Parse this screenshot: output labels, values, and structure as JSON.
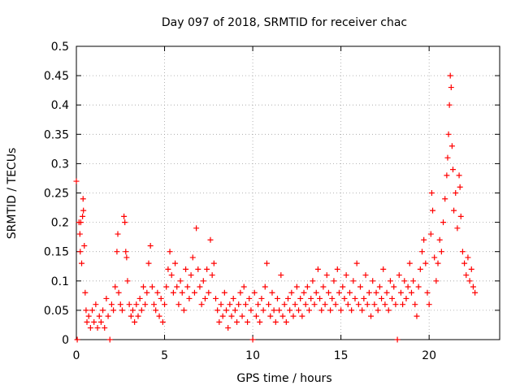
{
  "chart_data": {
    "type": "scatter",
    "title": "Day 097 of 2018, SRMTID for receiver chac",
    "xlabel": "GPS time / hours",
    "ylabel": "SRMTID / TECUs",
    "xlim": [
      0,
      24
    ],
    "ylim": [
      0,
      0.5
    ],
    "x_ticks": [
      0,
      5,
      10,
      15,
      20
    ],
    "x_tick_labels": [
      "0",
      "5",
      "10",
      "15",
      "20"
    ],
    "y_ticks": [
      0,
      0.05,
      0.1,
      0.15,
      0.2,
      0.25,
      0.3,
      0.35,
      0.4,
      0.45,
      0.5
    ],
    "y_tick_labels": [
      "0",
      "0.05",
      "0.1",
      "0.15",
      "0.2",
      "0.25",
      "0.3",
      "0.35",
      "0.4",
      "0.45",
      "0.5"
    ],
    "grid": true,
    "marker": "+",
    "color": "#ff0000",
    "series": [
      {
        "name": "SRMTID",
        "points": [
          [
            0.0,
            0.27
          ],
          [
            0.05,
            0.0
          ],
          [
            0.15,
            0.2
          ],
          [
            0.2,
            0.18
          ],
          [
            0.22,
            0.15
          ],
          [
            0.25,
            0.2
          ],
          [
            0.3,
            0.13
          ],
          [
            0.35,
            0.21
          ],
          [
            0.38,
            0.24
          ],
          [
            0.4,
            0.22
          ],
          [
            0.45,
            0.16
          ],
          [
            0.5,
            0.08
          ],
          [
            0.55,
            0.05
          ],
          [
            0.6,
            0.03
          ],
          [
            0.7,
            0.04
          ],
          [
            0.8,
            0.02
          ],
          [
            0.9,
            0.05
          ],
          [
            1.0,
            0.03
          ],
          [
            1.1,
            0.06
          ],
          [
            1.2,
            0.02
          ],
          [
            1.3,
            0.04
          ],
          [
            1.4,
            0.03
          ],
          [
            1.5,
            0.05
          ],
          [
            1.6,
            0.02
          ],
          [
            1.7,
            0.07
          ],
          [
            1.8,
            0.04
          ],
          [
            1.9,
            0.0
          ],
          [
            2.0,
            0.06
          ],
          [
            2.1,
            0.05
          ],
          [
            2.2,
            0.09
          ],
          [
            2.3,
            0.15
          ],
          [
            2.35,
            0.18
          ],
          [
            2.4,
            0.08
          ],
          [
            2.5,
            0.06
          ],
          [
            2.6,
            0.05
          ],
          [
            2.7,
            0.21
          ],
          [
            2.75,
            0.2
          ],
          [
            2.8,
            0.15
          ],
          [
            2.85,
            0.14
          ],
          [
            2.9,
            0.1
          ],
          [
            3.0,
            0.06
          ],
          [
            3.1,
            0.04
          ],
          [
            3.2,
            0.05
          ],
          [
            3.3,
            0.03
          ],
          [
            3.4,
            0.06
          ],
          [
            3.5,
            0.04
          ],
          [
            3.6,
            0.07
          ],
          [
            3.7,
            0.05
          ],
          [
            3.8,
            0.09
          ],
          [
            3.9,
            0.06
          ],
          [
            4.0,
            0.08
          ],
          [
            4.1,
            0.13
          ],
          [
            4.2,
            0.16
          ],
          [
            4.3,
            0.09
          ],
          [
            4.4,
            0.06
          ],
          [
            4.5,
            0.05
          ],
          [
            4.6,
            0.08
          ],
          [
            4.7,
            0.04
          ],
          [
            4.8,
            0.07
          ],
          [
            4.9,
            0.03
          ],
          [
            5.0,
            0.06
          ],
          [
            5.1,
            0.09
          ],
          [
            5.2,
            0.12
          ],
          [
            5.3,
            0.15
          ],
          [
            5.4,
            0.11
          ],
          [
            5.5,
            0.08
          ],
          [
            5.6,
            0.13
          ],
          [
            5.7,
            0.09
          ],
          [
            5.8,
            0.06
          ],
          [
            5.9,
            0.1
          ],
          [
            6.0,
            0.08
          ],
          [
            6.1,
            0.05
          ],
          [
            6.2,
            0.12
          ],
          [
            6.3,
            0.09
          ],
          [
            6.4,
            0.07
          ],
          [
            6.5,
            0.11
          ],
          [
            6.6,
            0.14
          ],
          [
            6.7,
            0.08
          ],
          [
            6.8,
            0.19
          ],
          [
            6.9,
            0.12
          ],
          [
            7.0,
            0.09
          ],
          [
            7.1,
            0.06
          ],
          [
            7.2,
            0.1
          ],
          [
            7.3,
            0.07
          ],
          [
            7.4,
            0.12
          ],
          [
            7.5,
            0.08
          ],
          [
            7.6,
            0.17
          ],
          [
            7.7,
            0.11
          ],
          [
            7.8,
            0.13
          ],
          [
            7.9,
            0.07
          ],
          [
            8.0,
            0.05
          ],
          [
            8.1,
            0.03
          ],
          [
            8.2,
            0.06
          ],
          [
            8.3,
            0.04
          ],
          [
            8.4,
            0.08
          ],
          [
            8.5,
            0.05
          ],
          [
            8.6,
            0.02
          ],
          [
            8.7,
            0.06
          ],
          [
            8.8,
            0.04
          ],
          [
            8.9,
            0.07
          ],
          [
            9.0,
            0.05
          ],
          [
            9.1,
            0.03
          ],
          [
            9.2,
            0.06
          ],
          [
            9.3,
            0.08
          ],
          [
            9.4,
            0.04
          ],
          [
            9.5,
            0.09
          ],
          [
            9.6,
            0.06
          ],
          [
            9.7,
            0.03
          ],
          [
            9.8,
            0.07
          ],
          [
            9.9,
            0.05
          ],
          [
            10.0,
            0.0
          ],
          [
            10.1,
            0.08
          ],
          [
            10.2,
            0.04
          ],
          [
            10.3,
            0.06
          ],
          [
            10.4,
            0.03
          ],
          [
            10.5,
            0.07
          ],
          [
            10.6,
            0.05
          ],
          [
            10.7,
            0.09
          ],
          [
            10.8,
            0.13
          ],
          [
            10.9,
            0.06
          ],
          [
            11.0,
            0.04
          ],
          [
            11.1,
            0.08
          ],
          [
            11.2,
            0.05
          ],
          [
            11.3,
            0.03
          ],
          [
            11.4,
            0.07
          ],
          [
            11.5,
            0.05
          ],
          [
            11.6,
            0.11
          ],
          [
            11.7,
            0.04
          ],
          [
            11.8,
            0.06
          ],
          [
            11.9,
            0.03
          ],
          [
            12.0,
            0.07
          ],
          [
            12.1,
            0.05
          ],
          [
            12.2,
            0.08
          ],
          [
            12.3,
            0.04
          ],
          [
            12.4,
            0.06
          ],
          [
            12.5,
            0.09
          ],
          [
            12.6,
            0.05
          ],
          [
            12.7,
            0.07
          ],
          [
            12.8,
            0.04
          ],
          [
            12.9,
            0.08
          ],
          [
            13.0,
            0.06
          ],
          [
            13.1,
            0.09
          ],
          [
            13.2,
            0.05
          ],
          [
            13.3,
            0.07
          ],
          [
            13.4,
            0.1
          ],
          [
            13.5,
            0.06
          ],
          [
            13.6,
            0.08
          ],
          [
            13.7,
            0.12
          ],
          [
            13.8,
            0.07
          ],
          [
            13.9,
            0.05
          ],
          [
            14.0,
            0.09
          ],
          [
            14.1,
            0.06
          ],
          [
            14.2,
            0.11
          ],
          [
            14.3,
            0.08
          ],
          [
            14.4,
            0.05
          ],
          [
            14.5,
            0.07
          ],
          [
            14.6,
            0.1
          ],
          [
            14.7,
            0.06
          ],
          [
            14.8,
            0.12
          ],
          [
            14.9,
            0.08
          ],
          [
            15.0,
            0.05
          ],
          [
            15.1,
            0.09
          ],
          [
            15.2,
            0.07
          ],
          [
            15.3,
            0.11
          ],
          [
            15.4,
            0.06
          ],
          [
            15.5,
            0.08
          ],
          [
            15.6,
            0.05
          ],
          [
            15.7,
            0.1
          ],
          [
            15.8,
            0.07
          ],
          [
            15.9,
            0.13
          ],
          [
            16.0,
            0.06
          ],
          [
            16.1,
            0.09
          ],
          [
            16.2,
            0.05
          ],
          [
            16.3,
            0.07
          ],
          [
            16.4,
            0.11
          ],
          [
            16.5,
            0.06
          ],
          [
            16.6,
            0.08
          ],
          [
            16.7,
            0.04
          ],
          [
            16.8,
            0.1
          ],
          [
            16.9,
            0.06
          ],
          [
            17.0,
            0.08
          ],
          [
            17.1,
            0.05
          ],
          [
            17.2,
            0.09
          ],
          [
            17.3,
            0.07
          ],
          [
            17.4,
            0.12
          ],
          [
            17.5,
            0.06
          ],
          [
            17.6,
            0.08
          ],
          [
            17.7,
            0.05
          ],
          [
            17.8,
            0.1
          ],
          [
            17.9,
            0.07
          ],
          [
            18.0,
            0.09
          ],
          [
            18.1,
            0.06
          ],
          [
            18.2,
            0.0
          ],
          [
            18.3,
            0.11
          ],
          [
            18.4,
            0.08
          ],
          [
            18.5,
            0.06
          ],
          [
            18.6,
            0.1
          ],
          [
            18.7,
            0.07
          ],
          [
            18.8,
            0.09
          ],
          [
            18.9,
            0.13
          ],
          [
            19.0,
            0.08
          ],
          [
            19.1,
            0.1
          ],
          [
            19.2,
            0.06
          ],
          [
            19.3,
            0.04
          ],
          [
            19.4,
            0.09
          ],
          [
            19.5,
            0.12
          ],
          [
            19.6,
            0.15
          ],
          [
            19.7,
            0.17
          ],
          [
            19.8,
            0.13
          ],
          [
            19.9,
            0.08
          ],
          [
            20.0,
            0.06
          ],
          [
            20.1,
            0.18
          ],
          [
            20.15,
            0.25
          ],
          [
            20.2,
            0.22
          ],
          [
            20.3,
            0.14
          ],
          [
            20.4,
            0.1
          ],
          [
            20.5,
            0.13
          ],
          [
            20.6,
            0.17
          ],
          [
            20.7,
            0.15
          ],
          [
            20.8,
            0.2
          ],
          [
            20.9,
            0.24
          ],
          [
            21.0,
            0.28
          ],
          [
            21.05,
            0.31
          ],
          [
            21.1,
            0.35
          ],
          [
            21.15,
            0.4
          ],
          [
            21.2,
            0.45
          ],
          [
            21.25,
            0.43
          ],
          [
            21.3,
            0.33
          ],
          [
            21.35,
            0.29
          ],
          [
            21.4,
            0.22
          ],
          [
            21.5,
            0.25
          ],
          [
            21.6,
            0.19
          ],
          [
            21.7,
            0.28
          ],
          [
            21.75,
            0.26
          ],
          [
            21.8,
            0.21
          ],
          [
            21.9,
            0.15
          ],
          [
            22.0,
            0.13
          ],
          [
            22.1,
            0.11
          ],
          [
            22.2,
            0.14
          ],
          [
            22.3,
            0.1
          ],
          [
            22.4,
            0.12
          ],
          [
            22.5,
            0.09
          ],
          [
            22.6,
            0.08
          ]
        ]
      }
    ]
  }
}
